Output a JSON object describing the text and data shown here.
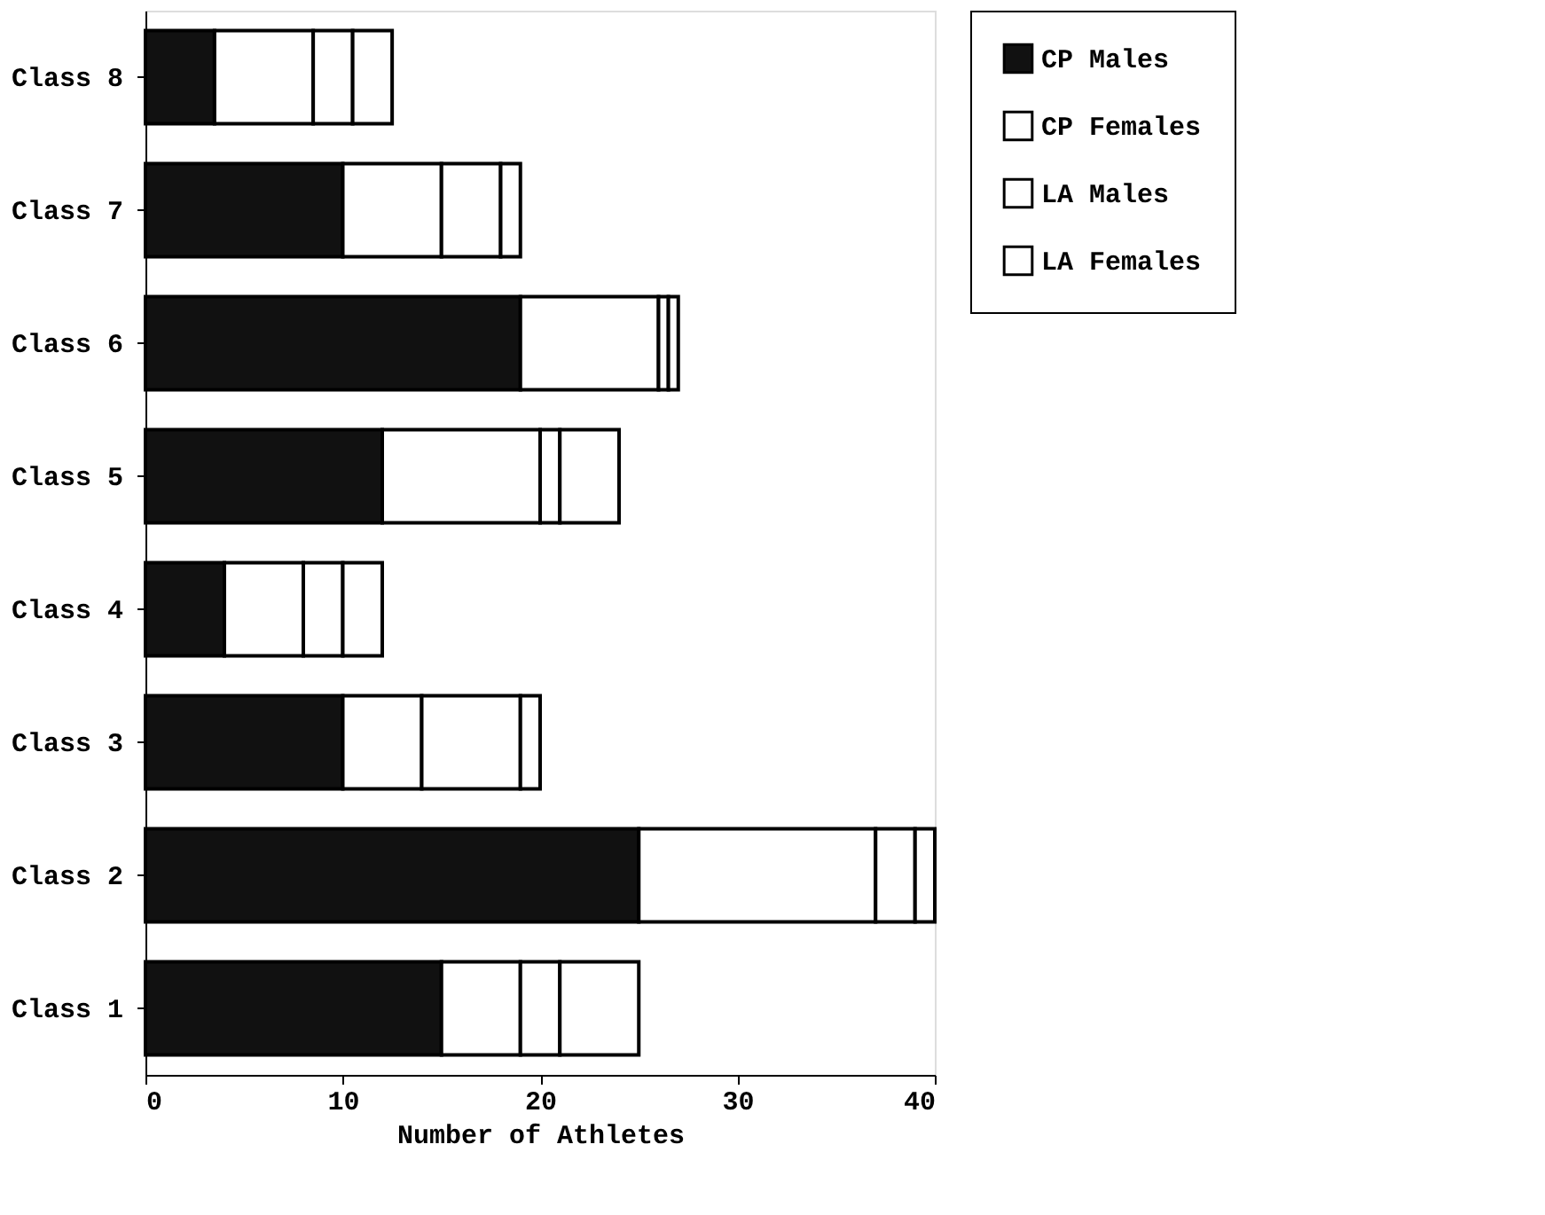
{
  "chart_data": {
    "type": "bar",
    "orientation": "horizontal",
    "stacked": true,
    "xlabel": "Number of Athletes",
    "categories": [
      "Class 8",
      "Class 7",
      "Class 6",
      "Class 5",
      "Class 4",
      "Class 3",
      "Class 2",
      "Class 1"
    ],
    "series": [
      {
        "name": "CP Males",
        "color": "#111111",
        "values": [
          3.5,
          10,
          19,
          12,
          4,
          10,
          25,
          15
        ]
      },
      {
        "name": "CP Females",
        "color": "#ffffff",
        "values": [
          5,
          5,
          7,
          8,
          4,
          4,
          12,
          4
        ]
      },
      {
        "name": "LA Males",
        "color": "#ffffff",
        "values": [
          2,
          3,
          0.5,
          1,
          2,
          5,
          2,
          2
        ]
      },
      {
        "name": "LA Females",
        "color": "#ffffff",
        "values": [
          2,
          1,
          0.5,
          3,
          2,
          1,
          1,
          4
        ]
      }
    ],
    "xlim": [
      0,
      40
    ],
    "xticks": [
      0,
      10,
      20,
      30,
      40
    ],
    "grid": false,
    "legend": "right"
  }
}
